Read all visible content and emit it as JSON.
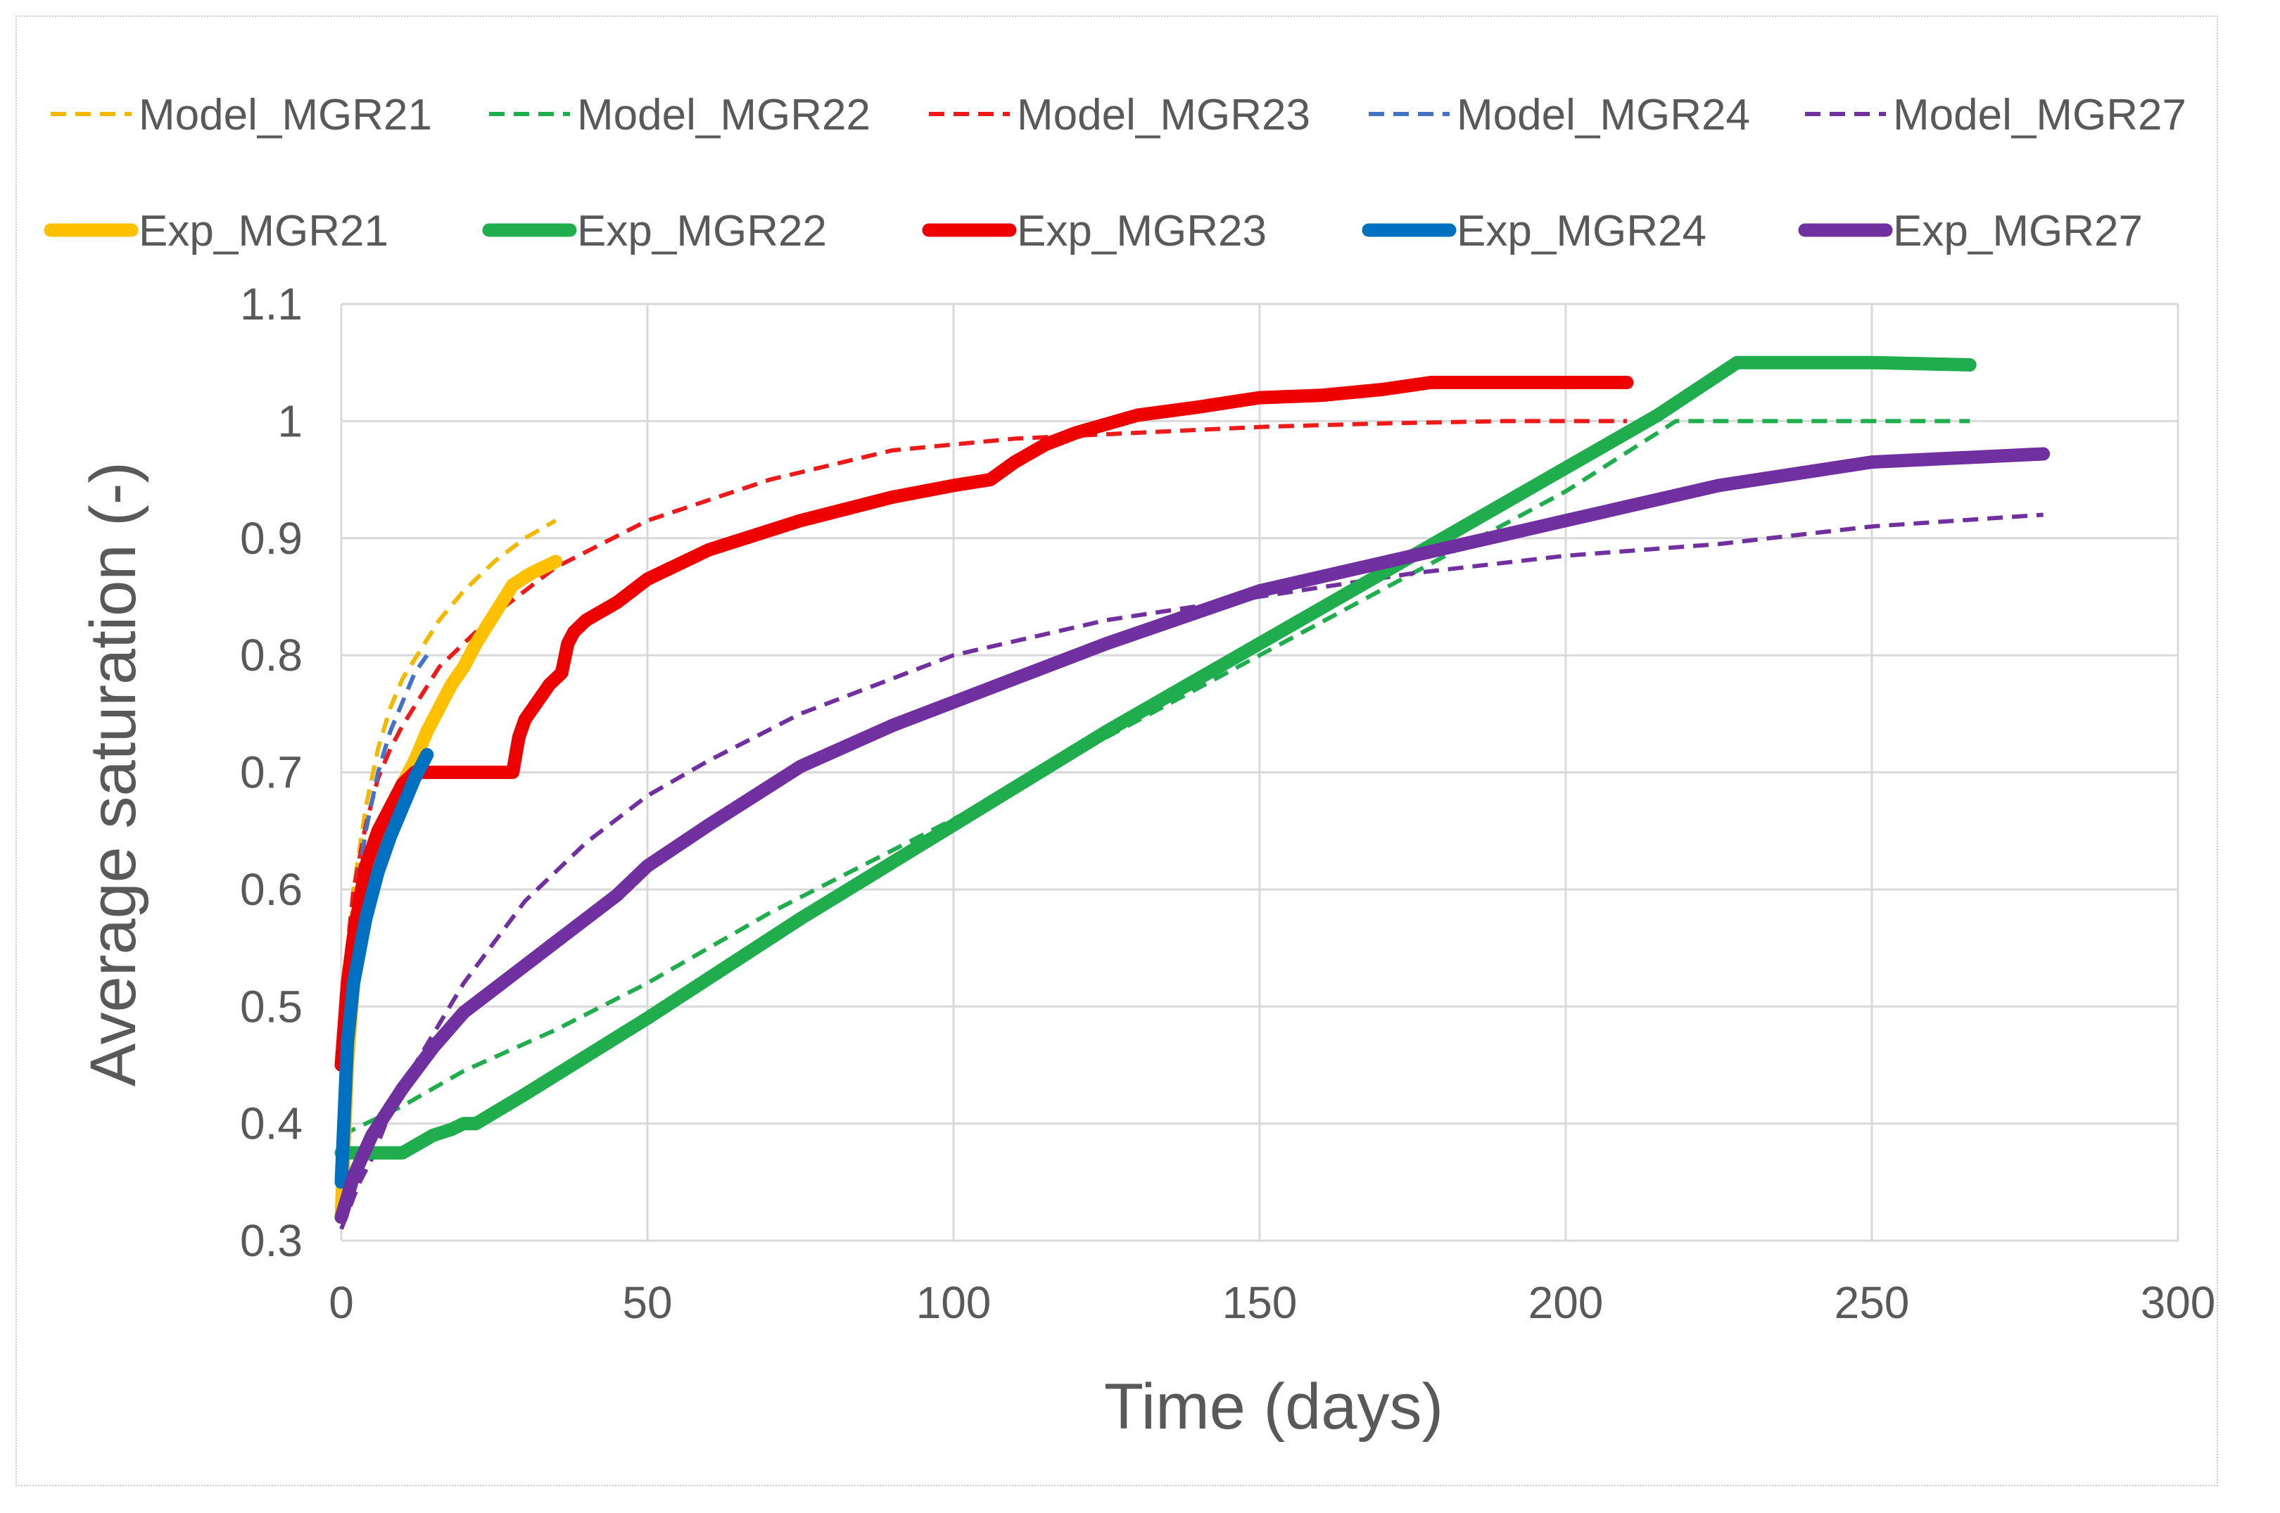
{
  "chart_data": {
    "type": "line",
    "title": "",
    "xlabel": "Time (days)",
    "ylabel": "Average saturation  (-)",
    "xlim": [
      0,
      300
    ],
    "ylim": [
      0.3,
      1.1
    ],
    "x_ticks": [
      0,
      50,
      100,
      150,
      200,
      250,
      300
    ],
    "x_tick_labels": [
      "0",
      "50",
      "100",
      "150",
      "200",
      "250",
      "300"
    ],
    "y_ticks": [
      0.3,
      0.4,
      0.5,
      0.6,
      0.7,
      0.8,
      0.9,
      1.0,
      1.1
    ],
    "y_tick_labels": [
      "0.3",
      "0.4",
      "0.5",
      "0.6",
      "0.7",
      "0.8",
      "0.9",
      "1",
      "1.1"
    ],
    "grid": true,
    "legend_position": "top",
    "series": [
      {
        "name": "Model_MGR21",
        "color": "#F5B800",
        "style": "dashed",
        "x": [
          0,
          1,
          2,
          4,
          6,
          8,
          10,
          13,
          16,
          20,
          25,
          30,
          35
        ],
        "y": [
          0.4,
          0.52,
          0.6,
          0.67,
          0.72,
          0.755,
          0.78,
          0.805,
          0.83,
          0.855,
          0.88,
          0.9,
          0.915
        ]
      },
      {
        "name": "Model_MGR22",
        "color": "#1FAD4E",
        "style": "dashed",
        "x": [
          0,
          10,
          20,
          35,
          50,
          70,
          100,
          125,
          150,
          175,
          200,
          218,
          240,
          266
        ],
        "y": [
          0.39,
          0.415,
          0.445,
          0.48,
          0.52,
          0.58,
          0.66,
          0.73,
          0.8,
          0.87,
          0.94,
          1.0,
          1.0,
          1.0
        ]
      },
      {
        "name": "Model_MGR23",
        "color": "#EE1A1A",
        "style": "dashed",
        "x": [
          0,
          1,
          2,
          4,
          6,
          8,
          10,
          13,
          16,
          20,
          25,
          30,
          35,
          50,
          70,
          90,
          110,
          130,
          150,
          170,
          190,
          210
        ],
        "y": [
          0.48,
          0.55,
          0.6,
          0.655,
          0.695,
          0.72,
          0.74,
          0.765,
          0.79,
          0.81,
          0.835,
          0.855,
          0.875,
          0.915,
          0.95,
          0.975,
          0.985,
          0.99,
          0.995,
          0.998,
          1.0,
          1.0
        ]
      },
      {
        "name": "Model_MGR24",
        "color": "#4472C4",
        "style": "dashed",
        "x": [
          0,
          1,
          2,
          4,
          6,
          8,
          10,
          12,
          14
        ],
        "y": [
          0.42,
          0.52,
          0.58,
          0.65,
          0.7,
          0.735,
          0.76,
          0.785,
          0.8
        ]
      },
      {
        "name": "Model_MGR27",
        "color": "#7030A0",
        "style": "dashed",
        "x": [
          0,
          3,
          5,
          8,
          12,
          16,
          20,
          25,
          30,
          40,
          50,
          60,
          75,
          100,
          125,
          150,
          175,
          200,
          225,
          250,
          278
        ],
        "y": [
          0.31,
          0.35,
          0.37,
          0.41,
          0.45,
          0.485,
          0.52,
          0.555,
          0.59,
          0.64,
          0.68,
          0.71,
          0.75,
          0.8,
          0.83,
          0.85,
          0.87,
          0.885,
          0.895,
          0.91,
          0.92
        ]
      },
      {
        "name": "Exp_MGR21",
        "color": "#FFC000",
        "style": "solid",
        "x": [
          0,
          1,
          2,
          4,
          6,
          8,
          10,
          12,
          14,
          16,
          18,
          20,
          22,
          25,
          28,
          31,
          35
        ],
        "y": [
          0.32,
          0.45,
          0.52,
          0.58,
          0.625,
          0.66,
          0.69,
          0.71,
          0.735,
          0.755,
          0.775,
          0.79,
          0.81,
          0.835,
          0.86,
          0.87,
          0.88
        ]
      },
      {
        "name": "Exp_MGR22",
        "color": "#1FAD4E",
        "style": "solid",
        "x": [
          0,
          10,
          15,
          18,
          20,
          22,
          30,
          50,
          75,
          100,
          125,
          150,
          175,
          200,
          215,
          228,
          235,
          250,
          266
        ],
        "y": [
          0.375,
          0.375,
          0.39,
          0.395,
          0.4,
          0.4,
          0.425,
          0.49,
          0.575,
          0.655,
          0.735,
          0.81,
          0.885,
          0.96,
          1.005,
          1.05,
          1.05,
          1.05,
          1.048
        ]
      },
      {
        "name": "Exp_MGR23",
        "color": "#EE0000",
        "style": "solid",
        "x": [
          0,
          1,
          2,
          4,
          6,
          8,
          10,
          12,
          20,
          28,
          29,
          30,
          32,
          34,
          36,
          37,
          38,
          40,
          45,
          50,
          60,
          75,
          90,
          100,
          106,
          110,
          115,
          120,
          130,
          140,
          150,
          160,
          170,
          178,
          190,
          210
        ],
        "y": [
          0.45,
          0.52,
          0.56,
          0.62,
          0.65,
          0.67,
          0.69,
          0.7,
          0.7,
          0.7,
          0.73,
          0.745,
          0.76,
          0.775,
          0.785,
          0.81,
          0.82,
          0.83,
          0.845,
          0.865,
          0.89,
          0.915,
          0.935,
          0.945,
          0.95,
          0.965,
          0.98,
          0.99,
          1.005,
          1.012,
          1.02,
          1.022,
          1.027,
          1.033,
          1.033,
          1.033
        ]
      },
      {
        "name": "Exp_MGR24",
        "color": "#0070C0",
        "style": "solid",
        "x": [
          0,
          1,
          2,
          4,
          6,
          8,
          10,
          12,
          14
        ],
        "y": [
          0.35,
          0.47,
          0.52,
          0.575,
          0.615,
          0.645,
          0.67,
          0.695,
          0.715
        ]
      },
      {
        "name": "Exp_MGR27",
        "color": "#7030A0",
        "style": "solid",
        "x": [
          0,
          2,
          5,
          10,
          15,
          20,
          25,
          30,
          35,
          40,
          45,
          50,
          60,
          75,
          90,
          110,
          125,
          150,
          175,
          200,
          225,
          250,
          278
        ],
        "y": [
          0.32,
          0.355,
          0.39,
          0.43,
          0.465,
          0.495,
          0.515,
          0.535,
          0.555,
          0.575,
          0.595,
          0.62,
          0.655,
          0.705,
          0.74,
          0.78,
          0.81,
          0.855,
          0.885,
          0.915,
          0.945,
          0.965,
          0.972
        ]
      }
    ]
  }
}
